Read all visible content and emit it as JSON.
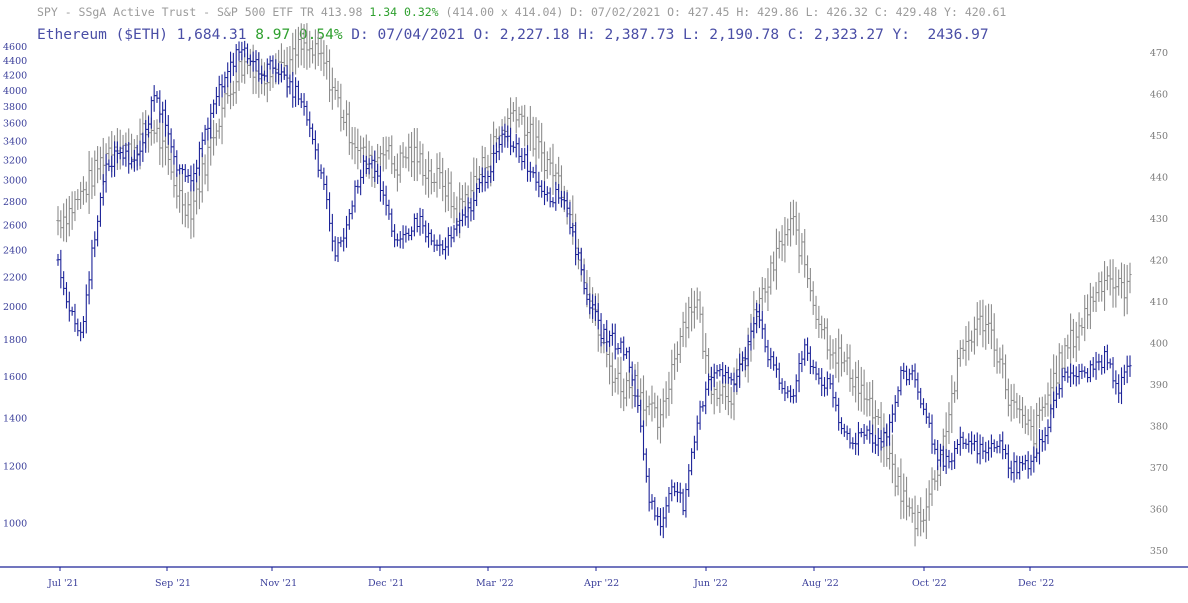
{
  "header": {
    "spy": {
      "prefix": "SPY - SSgA Active Trust - S&P 500 ETF TR 413.98",
      "change": "1.34 0.32%",
      "suffix": "(414.00 x 414.04) D: 07/02/2021 O: 427.45 H: 429.86 L: 426.32 C: 429.48 Y: 420.61"
    },
    "eth": {
      "prefix": "Ethereum ($ETH) 1,684.31",
      "change": "8.97 0.54%",
      "suffix": "D: 07/04/2021 O: 2,227.18 H: 2,387.73 L: 2,190.78 C: 2,323.27 Y:  2436.97"
    }
  },
  "colors": {
    "eth": "#1c2398",
    "spy": "#8c8c8c",
    "axis": "#1c2398",
    "change_positive": "#2fa02f"
  },
  "chart_data": {
    "type": "line",
    "style": "ohlc-bars",
    "x_ticks": [
      "Jul '21",
      "Sep '21",
      "Nov '21",
      "Dec '21",
      "Mar '22",
      "Apr '22",
      "Jun '22",
      "Aug '22",
      "Oct '22",
      "Dec '22"
    ],
    "left_axis": {
      "scale": "log",
      "ylim": [
        880,
        4700
      ],
      "ticks": [
        1000,
        1200,
        1400,
        1600,
        1800,
        2000,
        2200,
        2400,
        2600,
        2800,
        3000,
        3200,
        3400,
        3600,
        3800,
        4000,
        4200,
        4400,
        4600
      ]
    },
    "right_axis": {
      "scale": "linear",
      "ylim": [
        347,
        473
      ],
      "ticks": [
        350,
        360,
        370,
        380,
        390,
        400,
        410,
        420,
        430,
        440,
        450,
        460,
        470
      ]
    },
    "series": [
      {
        "name": "Ethereum ($ETH)",
        "axis": "left",
        "color": "#1c2398",
        "x_index": [
          0,
          2,
          4,
          6,
          8,
          10,
          12,
          14,
          16,
          18,
          20,
          22,
          24,
          26,
          28,
          30,
          32,
          34,
          36,
          38,
          40,
          42,
          44,
          46,
          48,
          50,
          52,
          54
        ],
        "values": [
          2323,
          1950,
          1830,
          2500,
          3100,
          3300,
          3200,
          3300,
          3950,
          3600,
          3100,
          2950,
          3350,
          3950,
          4150,
          4600,
          4400,
          4250,
          4350,
          4050,
          3950,
          3450,
          2950,
          2350,
          2600,
          3050,
          3250,
          2850
        ]
      },
      {
        "name": "SPY - SSgA Active Trust - S&P 500 ETF TR",
        "axis": "right",
        "color": "#8c8c8c",
        "x_index": [
          0,
          2,
          4,
          6,
          8,
          10,
          12,
          14,
          16,
          18,
          20,
          22,
          24,
          26,
          28,
          30,
          32,
          34,
          36,
          38,
          40,
          42,
          44,
          46,
          48,
          50,
          52,
          54
        ],
        "values": [
          429.5,
          432,
          436,
          441,
          446,
          449,
          446,
          450,
          452,
          444,
          436,
          432,
          441,
          452,
          459,
          466,
          468,
          463,
          469,
          466,
          471,
          470,
          468,
          460,
          452,
          447,
          442,
          448
        ]
      }
    ],
    "tail": {
      "eth": [
        2400,
        2550,
        2650,
        2450,
        2400,
        2550,
        2700,
        2950,
        3150,
        3450,
        3350,
        3150,
        2950,
        2850,
        2850,
        2400,
        2050,
        1850,
        1800,
        1750,
        1500,
        1100,
        980,
        1150,
        1050,
        1350,
        1600,
        1650,
        1550,
        1700,
        2000,
        1700,
        1550,
        1500,
        1750,
        1600,
        1550,
        1350,
        1300,
        1350,
        1300,
        1350,
        1600,
        1620,
        1400,
        1250,
        1200,
        1300,
        1280,
        1250,
        1300,
        1200,
        1200,
        1220,
        1350,
        1550,
        1620,
        1600,
        1650,
        1700,
        1520,
        1684
      ],
      "spy": [
        442,
        446,
        444,
        440,
        439,
        431,
        436,
        441,
        447,
        452,
        457,
        451,
        446,
        442,
        437,
        425,
        413,
        401,
        393,
        389,
        391,
        384,
        380,
        395,
        406,
        411,
        391,
        389,
        388,
        396,
        408,
        415,
        424,
        429,
        419,
        407,
        400,
        396,
        392,
        387,
        380,
        372,
        364,
        357,
        360,
        370,
        384,
        398,
        403,
        406,
        398,
        386,
        381,
        378,
        386,
        394,
        400,
        405,
        412,
        417,
        413,
        414
      ]
    }
  }
}
